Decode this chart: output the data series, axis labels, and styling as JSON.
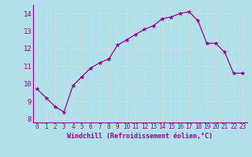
{
  "x": [
    0,
    1,
    2,
    3,
    4,
    5,
    6,
    7,
    8,
    9,
    10,
    11,
    12,
    13,
    14,
    15,
    16,
    17,
    18,
    19,
    20,
    21,
    22,
    23
  ],
  "y": [
    9.7,
    9.2,
    8.7,
    8.4,
    9.9,
    10.4,
    10.9,
    11.2,
    11.4,
    12.2,
    12.5,
    12.8,
    13.1,
    13.3,
    13.7,
    13.8,
    14.0,
    14.1,
    13.6,
    12.3,
    12.3,
    11.8,
    10.6,
    10.6
  ],
  "line_color": "#990099",
  "marker": "*",
  "marker_color": "#990099",
  "bg_color": "#b2e0e8",
  "grid_color": "#c8dde0",
  "xlabel": "Windchill (Refroidissement éolien,°C)",
  "xlabel_color": "#990099",
  "tick_color": "#990099",
  "spine_color": "#990099",
  "ylim": [
    7.8,
    14.5
  ],
  "xlim": [
    -0.5,
    23.5
  ],
  "yticks": [
    8,
    9,
    10,
    11,
    12,
    13,
    14
  ],
  "xticks": [
    0,
    1,
    2,
    3,
    4,
    5,
    6,
    7,
    8,
    9,
    10,
    11,
    12,
    13,
    14,
    15,
    16,
    17,
    18,
    19,
    20,
    21,
    22,
    23
  ],
  "xtick_labels": [
    "0",
    "1",
    "2",
    "3",
    "4",
    "5",
    "6",
    "7",
    "8",
    "9",
    "10",
    "11",
    "12",
    "13",
    "14",
    "15",
    "16",
    "17",
    "18",
    "19",
    "20",
    "21",
    "22",
    "23"
  ],
  "ytick_labels": [
    "8",
    "9",
    "10",
    "11",
    "12",
    "13",
    "14"
  ],
  "tick_fontsize": 5.5,
  "xlabel_fontsize": 6.0,
  "marker_size": 3.5,
  "line_width": 0.9
}
